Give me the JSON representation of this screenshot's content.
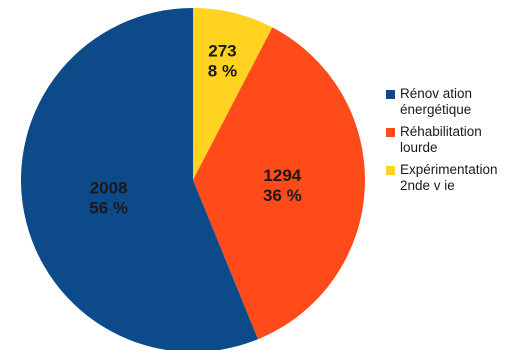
{
  "chart_data": {
    "type": "pie",
    "title": "",
    "categories": [
      "Rénovation énergétique",
      "Réhabilitation lourde",
      "Expérimentation 2nde vie"
    ],
    "values": [
      2008,
      1294,
      273
    ],
    "percent_labels": [
      "56 %",
      "36 %",
      "8 %"
    ],
    "value_labels": [
      "2008",
      "1294",
      "273"
    ],
    "colors": [
      "#0d4a8a",
      "#ff4a1a",
      "#ffd320"
    ],
    "start_angle_deg": 0,
    "direction": "clockwise-display-order: Expérimentation 2nde vie, Réhabilitation lourde, Rénovation énergétique",
    "legend_position": "right"
  },
  "legend": {
    "items": [
      {
        "label": "Rénov ation\nénergétique",
        "color": "#0d4a8a"
      },
      {
        "label": "Réhabilitation\nlourde",
        "color": "#ff4a1a"
      },
      {
        "label": "Expérimentation\n2nde v ie",
        "color": "#ffd320"
      }
    ]
  }
}
